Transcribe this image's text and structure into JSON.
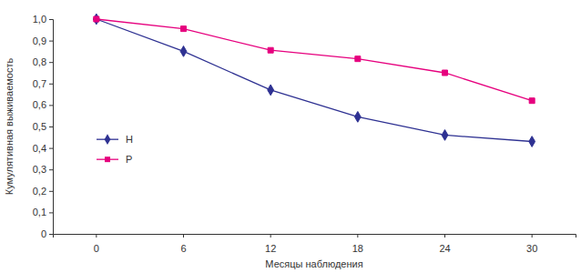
{
  "chart_data": {
    "type": "line",
    "x_label": "Месяцы наблюдения",
    "y_label": "Кумулятивная выживаемость",
    "categories": [
      "0",
      "6",
      "12",
      "18",
      "24",
      "30"
    ],
    "series": [
      {
        "name": "H",
        "color": "#2e3192",
        "marker": "diamond",
        "values": [
          1.0,
          0.85,
          0.67,
          0.545,
          0.46,
          0.43
        ]
      },
      {
        "name": "P",
        "color": "#e6007e",
        "marker": "square",
        "values": [
          1.0,
          0.955,
          0.855,
          0.815,
          0.75,
          0.62
        ]
      }
    ],
    "ylim": [
      0,
      1
    ],
    "yticks": [
      0,
      {
        "value": 0.1,
        "label": "0,1"
      },
      {
        "value": 0.2,
        "label": "0,2"
      },
      {
        "value": 0.3,
        "label": "0,3"
      },
      {
        "value": 0.4,
        "label": "0,4"
      },
      {
        "value": 0.5,
        "label": "0,5"
      },
      {
        "value": 0.6,
        "label": "0,6"
      },
      {
        "value": 0.7,
        "label": "0,7"
      },
      {
        "value": 0.8,
        "label": "0,8"
      },
      {
        "value": 0.9,
        "label": "0,9"
      },
      {
        "value": 1,
        "label": "1,0"
      }
    ],
    "grid": false,
    "legend": "left"
  }
}
